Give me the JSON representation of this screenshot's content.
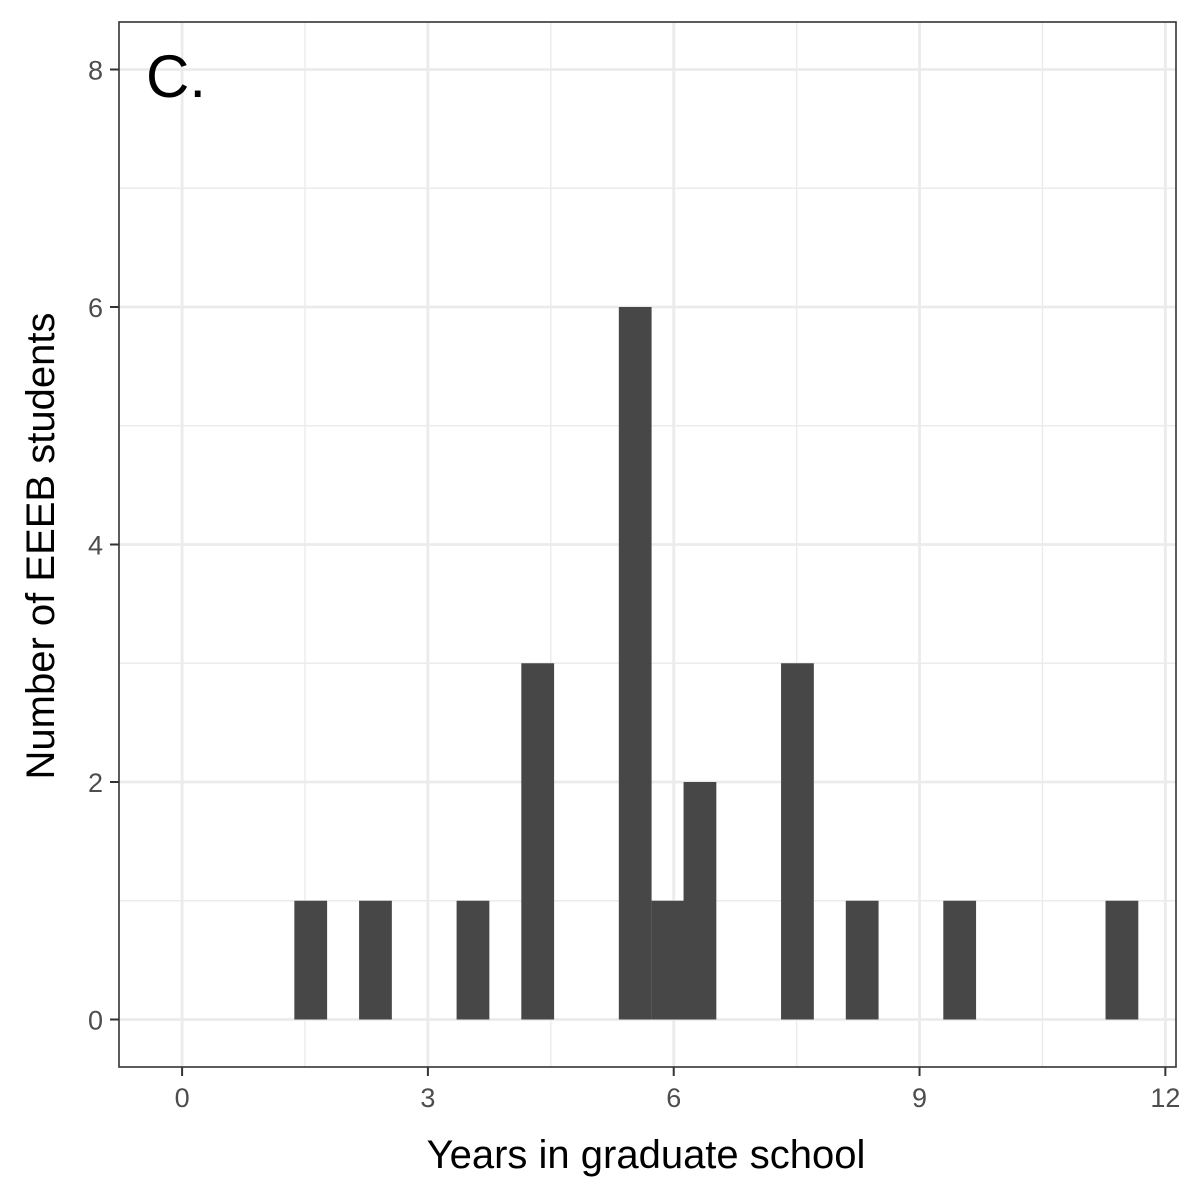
{
  "chart_data": {
    "type": "bar",
    "panel_label": "C.",
    "xlabel": "Years in graduate school",
    "ylabel": "Number of EEEB students",
    "xlim": [
      -0.77,
      12.13
    ],
    "ylim": [
      -0.4,
      8.4
    ],
    "x_ticks": [
      0,
      3,
      6,
      9,
      12
    ],
    "y_ticks": [
      0,
      2,
      4,
      6,
      8
    ],
    "x_minor_grid": [
      1.5,
      4.5,
      7.5,
      10.5
    ],
    "y_minor_grid": [
      1,
      3,
      5,
      7
    ],
    "bin_width": 0.4,
    "bins": [
      {
        "center": 1.57,
        "count": 1
      },
      {
        "center": 2.36,
        "count": 1
      },
      {
        "center": 3.55,
        "count": 1
      },
      {
        "center": 4.34,
        "count": 3
      },
      {
        "center": 5.53,
        "count": 6
      },
      {
        "center": 5.93,
        "count": 1
      },
      {
        "center": 6.32,
        "count": 2
      },
      {
        "center": 7.51,
        "count": 3
      },
      {
        "center": 8.3,
        "count": 1
      },
      {
        "center": 9.49,
        "count": 1
      },
      {
        "center": 11.47,
        "count": 1
      }
    ],
    "grid": true,
    "bar_color": "#474747",
    "grid_color": "#ebebeb",
    "panel_border_color": "#333333"
  }
}
